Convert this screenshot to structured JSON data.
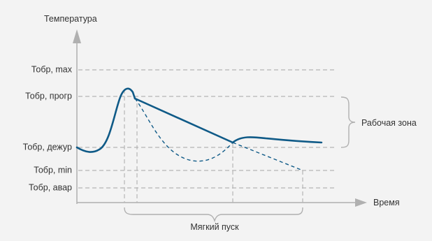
{
  "diagram": {
    "y_axis_label": "Температура",
    "x_axis_label": "Время",
    "levels": [
      {
        "id": "max",
        "label": "Тобр, max"
      },
      {
        "id": "progr",
        "label": "Тобр, прогр"
      },
      {
        "id": "dezhur",
        "label": "Тобр, дежур"
      },
      {
        "id": "min",
        "label": "Тобр, min"
      },
      {
        "id": "avar",
        "label": "Тобр, авар"
      }
    ],
    "working_zone_label": "Рабочая зона",
    "soft_start_label": "Мягкий пуск",
    "colors": {
      "background": "#f3f3f3",
      "axis": "#b0b0b0",
      "dashed_guide": "#b5b5b5",
      "curve": "#0f5a87",
      "brace": "#b0b0b0",
      "text": "#333333"
    }
  }
}
